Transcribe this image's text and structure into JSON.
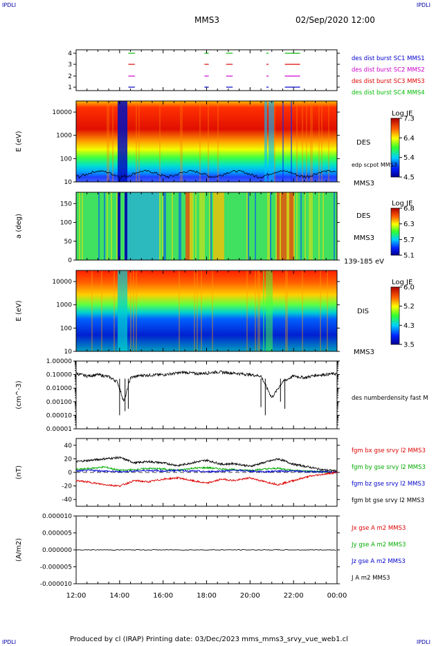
{
  "header": {
    "corner_tl": "IPDLI",
    "corner_tr": "IPDLI",
    "title": "MMS3",
    "datetime": "02/Sep/2020 12:00"
  },
  "footer": {
    "text": "Produced by cl (IRAP)   Printing date: 03/Dec/2023   mms_mms3_srvy_vue_web1.cl",
    "corner_bl": "IPDLI",
    "corner_br": "IPDLI"
  },
  "time_axis": {
    "ticks": [
      "12:00",
      "14:00",
      "16:00",
      "18:00",
      "20:00",
      "22:00",
      "00:00"
    ],
    "range_hours": [
      12,
      24
    ]
  },
  "chart_data": [
    {
      "type": "timeline",
      "ylim": [
        0.5,
        4.5
      ],
      "yticks": [
        "1",
        "2",
        "3",
        "4"
      ],
      "legend": [
        {
          "label": "des dist burst SC1 MMS1",
          "color": "#0000cc"
        },
        {
          "label": "des dist burst SC2 MMS2",
          "color": "#cc00cc"
        },
        {
          "label": "des dist burst SC3 MMS3",
          "color": "#dd0000"
        },
        {
          "label": "des dist burst SC4 MMS4",
          "color": "#00bb00"
        }
      ],
      "intervals_hours": [
        [
          14.4,
          14.7
        ],
        [
          17.9,
          18.1
        ],
        [
          18.9,
          19.2
        ],
        [
          20.75,
          20.85
        ],
        [
          21.6,
          22.3
        ]
      ]
    },
    {
      "type": "heatmap",
      "ylabel": "E (eV)",
      "yscale": "log",
      "ylim": [
        10,
        30000
      ],
      "yticks": [
        "10",
        "100",
        "1000",
        "10000"
      ],
      "colorbar": {
        "title": "Log JE",
        "range": [
          4.5,
          7.3
        ],
        "ticks": [
          "7.3",
          "6.4",
          "5.4",
          "4.5"
        ]
      },
      "right_labels": [
        "DES",
        "edp scpot MMS3",
        "MMS3"
      ],
      "dropouts_hours": [
        [
          13.9,
          14.3
        ],
        [
          16.3,
          16.5
        ],
        [
          18.5,
          18.8
        ],
        [
          20.5,
          21.1
        ],
        [
          21.4,
          21.5
        ],
        [
          21.9,
          22.2
        ]
      ]
    },
    {
      "type": "heatmap",
      "ylabel": "a (deg)",
      "ylim": [
        0,
        180
      ],
      "yticks": [
        "0",
        "50",
        "100",
        "150"
      ],
      "colorbar": {
        "title": "Log JE",
        "range": [
          5.1,
          6.8
        ],
        "ticks": [
          "6.8",
          "6.3",
          "5.7",
          "5.1"
        ]
      },
      "right_labels": [
        "DES",
        "MMS3",
        "139-185 eV"
      ]
    },
    {
      "type": "heatmap",
      "ylabel": "E (eV)",
      "yscale": "log",
      "ylim": [
        10,
        30000
      ],
      "yticks": [
        "10",
        "100",
        "1000",
        "10000"
      ],
      "colorbar": {
        "title": "Log JE",
        "range": [
          3.5,
          6.0
        ],
        "ticks": [
          "6.0",
          "5.2",
          "4.3",
          "3.5"
        ]
      },
      "right_labels": [
        "DIS",
        "MMS3"
      ]
    },
    {
      "type": "line",
      "ylabel": "(cm^-3)",
      "yscale": "log",
      "ylim": [
        0.0001,
        1.0
      ],
      "yticks": [
        "0.00001",
        "0.00010",
        "0.00100",
        "0.01000",
        "0.10000",
        "1.00000"
      ],
      "series": [
        {
          "name": "des numberdensity fast M",
          "color": "#000000"
        }
      ],
      "anchors_hours": [
        12,
        12.5,
        13,
        13.5,
        13.9,
        14.2,
        14.5,
        15,
        16,
        17,
        17.5,
        18,
        18.5,
        19,
        19.5,
        20,
        20.5,
        21,
        21.5,
        22,
        22.5,
        23,
        24
      ],
      "anchors_values": [
        0.12,
        0.08,
        0.1,
        0.07,
        0.03,
        0.001,
        0.06,
        0.09,
        0.1,
        0.15,
        0.12,
        0.13,
        0.16,
        0.14,
        0.12,
        0.1,
        0.08,
        0.002,
        0.03,
        0.08,
        0.06,
        0.09,
        0.12
      ],
      "dips": [
        [
          14.0,
          0.0001
        ],
        [
          14.25,
          0.0002
        ],
        [
          14.4,
          0.0003
        ],
        [
          20.5,
          0.0004
        ],
        [
          20.7,
          0.0001
        ],
        [
          21.4,
          0.001
        ],
        [
          21.6,
          0.0003
        ]
      ]
    },
    {
      "type": "line",
      "ylabel": "(nT)",
      "ylim": [
        -50,
        50
      ],
      "yticks": [
        "-40",
        "-20",
        "0",
        "20",
        "40"
      ],
      "series": [
        {
          "name": "fgm bx gse srvy l2 MMS3",
          "color": "#dd0000",
          "anchors_values": [
            -12,
            -15,
            -18,
            -20,
            -12,
            -14,
            -10,
            -8,
            -12,
            -16,
            -10,
            -12,
            -8,
            -14,
            -18,
            -12,
            -6,
            -3,
            0
          ]
        },
        {
          "name": "fgm by gse srvy l2 MMS3",
          "color": "#00aa00",
          "anchors_values": [
            4,
            6,
            8,
            3,
            4,
            6,
            5,
            3,
            6,
            7,
            5,
            4,
            3,
            5,
            6,
            3,
            2,
            1,
            0
          ]
        },
        {
          "name": "fgm bz gse srvy l2 MMS3",
          "color": "#0000cc",
          "anchors_values": [
            2,
            3,
            2,
            1,
            2,
            3,
            2,
            3,
            2,
            1,
            2,
            3,
            2,
            1,
            2,
            2,
            1,
            1,
            0
          ]
        },
        {
          "name": "fgm bt gse srvy l2 MMS3",
          "color": "#000000",
          "anchors_values": [
            16,
            18,
            20,
            22,
            14,
            16,
            14,
            10,
            14,
            18,
            12,
            13,
            9,
            15,
            20,
            12,
            8,
            4,
            2
          ]
        }
      ],
      "anchors_hours": [
        12,
        12.7,
        13.3,
        14,
        14.7,
        15.3,
        16,
        16.7,
        17.3,
        18,
        18.7,
        19.3,
        20,
        20.7,
        21.3,
        22,
        22.7,
        23.3,
        24
      ]
    },
    {
      "type": "line",
      "ylabel": "(A/m2)",
      "ylim": [
        -0.0001,
        0.0001
      ],
      "yticks": [
        "-0.000010",
        "-0.000005",
        "0.000000",
        "0.000005",
        "0.000010"
      ],
      "series": [
        {
          "name": "Jx gse A m2 MMS3",
          "color": "#dd0000"
        },
        {
          "name": "Jy gse A m2 MMS3",
          "color": "#00aa00"
        },
        {
          "name": "Jz gse A m2 MMS3",
          "color": "#0000cc"
        },
        {
          "name": "J A m2 MMS3",
          "color": "#000000"
        }
      ],
      "values": "near zero throughout"
    }
  ]
}
